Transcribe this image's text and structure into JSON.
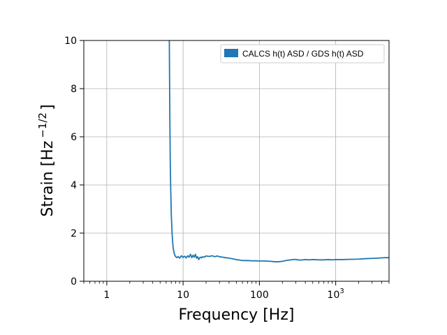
{
  "chart_data": {
    "type": "line",
    "xlabel": "Frequency [Hz]",
    "ylabel": "Strain [Hz",
    "ylabel_exponent": "−1/2",
    "ylabel_close": "]",
    "xscale": "log",
    "xlim": [
      0.5,
      5000
    ],
    "ylim": [
      0,
      10
    ],
    "grid": true,
    "legend_position": "top-right",
    "x_tick_labels": [
      {
        "value": 1,
        "label": "1"
      },
      {
        "value": 10,
        "label": "10"
      },
      {
        "value": 100,
        "label": "100"
      },
      {
        "value": 1000,
        "base": "10",
        "exp": "3"
      }
    ],
    "y_ticks": [
      0,
      2,
      4,
      6,
      8,
      10
    ],
    "series": [
      {
        "name": "CALCS h(t) ASD / GDS h(t) ASD",
        "color": "#1f77b4",
        "x": [
          6.6,
          6.65,
          6.7,
          6.75,
          6.8,
          6.9,
          7.0,
          7.2,
          7.4,
          7.6,
          7.8,
          8.0,
          8.3,
          8.6,
          9.0,
          9.5,
          10.0,
          10.5,
          11.0,
          11.5,
          12.0,
          12.5,
          13.0,
          13.5,
          14.0,
          14.5,
          15.0,
          15.5,
          16.0,
          16.5,
          17.0,
          17.5,
          18.0,
          19.0,
          20.0,
          22.0,
          24.0,
          26.0,
          28.0,
          30.0,
          33.0,
          36.0,
          40.0,
          45.0,
          50.0,
          55.0,
          60.0,
          70.0,
          80.0,
          90.0,
          100.0,
          120.0,
          140.0,
          160.0,
          180.0,
          200.0,
          230.0,
          260.0,
          290.0,
          320.0,
          350.0,
          400.0,
          450.0,
          500.0,
          600.0,
          700.0,
          800.0,
          900.0,
          1000.0,
          1200.0,
          1500.0,
          2000.0,
          2500.0,
          3000.0,
          3500.0,
          4000.0,
          4500.0,
          5000.0
        ],
        "y": [
          10.0,
          8.4,
          6.9,
          5.8,
          4.8,
          3.7,
          2.8,
          1.9,
          1.4,
          1.2,
          1.08,
          1.02,
          0.98,
          1.03,
          0.96,
          1.06,
          0.99,
          1.04,
          0.97,
          1.06,
          1.0,
          1.12,
          0.98,
          1.08,
          1.0,
          1.12,
          0.96,
          1.02,
          0.9,
          0.98,
          1.0,
          0.97,
          1.02,
          1.0,
          1.05,
          1.03,
          1.06,
          1.02,
          1.05,
          1.02,
          1.0,
          0.98,
          0.96,
          0.93,
          0.9,
          0.88,
          0.86,
          0.86,
          0.85,
          0.85,
          0.84,
          0.84,
          0.83,
          0.81,
          0.81,
          0.83,
          0.87,
          0.89,
          0.91,
          0.89,
          0.88,
          0.9,
          0.89,
          0.9,
          0.89,
          0.89,
          0.9,
          0.89,
          0.9,
          0.9,
          0.91,
          0.92,
          0.94,
          0.95,
          0.96,
          0.97,
          0.98,
          0.98
        ]
      }
    ]
  }
}
